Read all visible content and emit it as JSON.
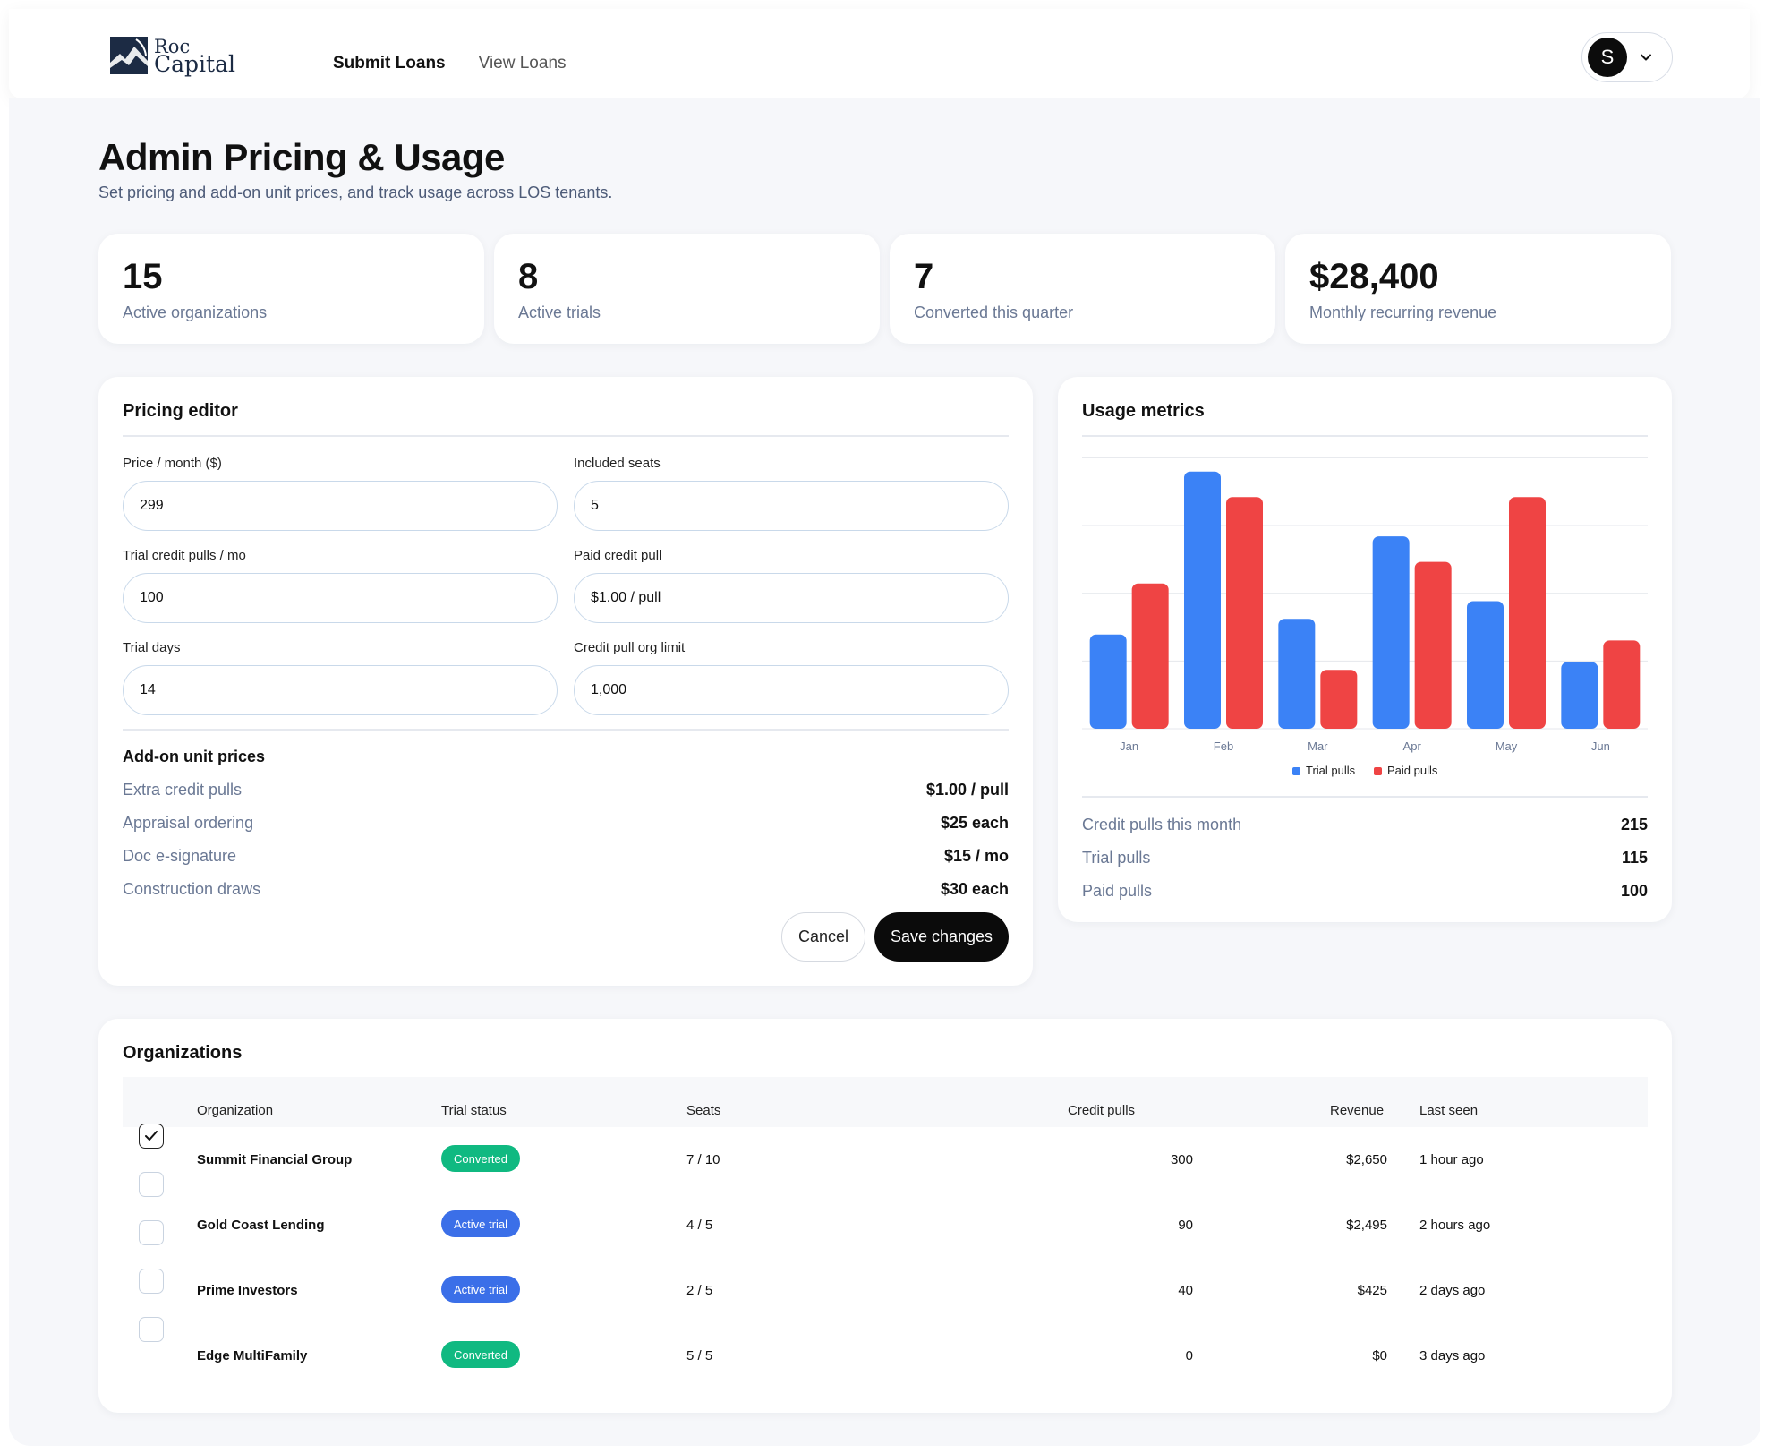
{
  "brand": {
    "line1": "Roc",
    "line2": "Capital"
  },
  "nav": {
    "items": [
      {
        "label": "Submit Loans",
        "active": true
      },
      {
        "label": "View Loans",
        "active": false
      }
    ]
  },
  "user": {
    "initial": "S"
  },
  "page": {
    "title": "Admin Pricing & Usage",
    "subtitle": "Set pricing and add-on unit prices, and track usage across LOS tenants."
  },
  "stats": [
    {
      "value": "15",
      "label": "Active organizations"
    },
    {
      "value": "8",
      "label": "Active trials"
    },
    {
      "value": "7",
      "label": "Converted this quarter"
    },
    {
      "value": "$28,400",
      "label": "Monthly recurring revenue"
    }
  ],
  "pricing": {
    "title": "Pricing editor",
    "fields": [
      {
        "label": "Price / month ($)",
        "value": "299"
      },
      {
        "label": "Included seats",
        "value": "5"
      },
      {
        "label": "Trial credit pulls / mo",
        "value": "100"
      },
      {
        "label": "Paid credit pull",
        "value": "$1.00 / pull"
      },
      {
        "label": "Trial days",
        "value": "14"
      },
      {
        "label": "Credit pull org limit",
        "value": "1,000"
      }
    ],
    "addons_title": "Add-on unit prices",
    "addons": [
      {
        "name": "Extra credit pulls",
        "price": "$1.00 / pull"
      },
      {
        "name": "Appraisal ordering",
        "price": "$25 each"
      },
      {
        "name": "Doc e-signature",
        "price": "$15 / mo"
      },
      {
        "name": "Construction draws",
        "price": "$30 each"
      }
    ],
    "cancel_label": "Cancel",
    "save_label": "Save changes"
  },
  "usage": {
    "title": "Usage metrics",
    "metrics": [
      {
        "name": "Credit pulls this month",
        "value": "215"
      },
      {
        "name": "Trial pulls",
        "value": "115"
      },
      {
        "name": "Paid pulls",
        "value": "100"
      }
    ]
  },
  "chart_data": {
    "type": "bar",
    "categories": [
      "Jan",
      "Feb",
      "Mar",
      "Apr",
      "May",
      "Jun"
    ],
    "series": [
      {
        "name": "Trial pulls",
        "color": "#3b82f6",
        "values": [
          48,
          131,
          56,
          98,
          65,
          34
        ]
      },
      {
        "name": "Paid pulls",
        "color": "#ef4444",
        "values": [
          74,
          118,
          30,
          85,
          118,
          45
        ]
      }
    ],
    "ylim": [
      0,
      140
    ],
    "grid": true,
    "legend": "bottom-center"
  },
  "orgs": {
    "title": "Organizations",
    "columns": [
      "Organization",
      "Trial status",
      "Seats",
      "Credit pulls",
      "Revenue",
      "Last seen"
    ],
    "rows": [
      {
        "name": "Summit Financial Group",
        "status": "Converted",
        "status_color": "#10b981",
        "seats": "7 / 10",
        "pulls": "300",
        "revenue": "$2,650",
        "seen": "1 hour ago",
        "checked": true
      },
      {
        "name": "Gold Coast Lending",
        "status": "Active trial",
        "status_color": "#3b6fe8",
        "seats": "4 / 5",
        "pulls": "90",
        "revenue": "$2,495",
        "seen": "2 hours ago",
        "checked": false
      },
      {
        "name": "Prime Investors",
        "status": "Active trial",
        "status_color": "#3b6fe8",
        "seats": "2 / 5",
        "pulls": "40",
        "revenue": "$425",
        "seen": "2 days ago",
        "checked": false
      },
      {
        "name": "Edge MultiFamily",
        "status": "Converted",
        "status_color": "#10b981",
        "seats": "5 / 5",
        "pulls": "0",
        "revenue": "$0",
        "seen": "3 days ago",
        "checked": false
      }
    ]
  }
}
